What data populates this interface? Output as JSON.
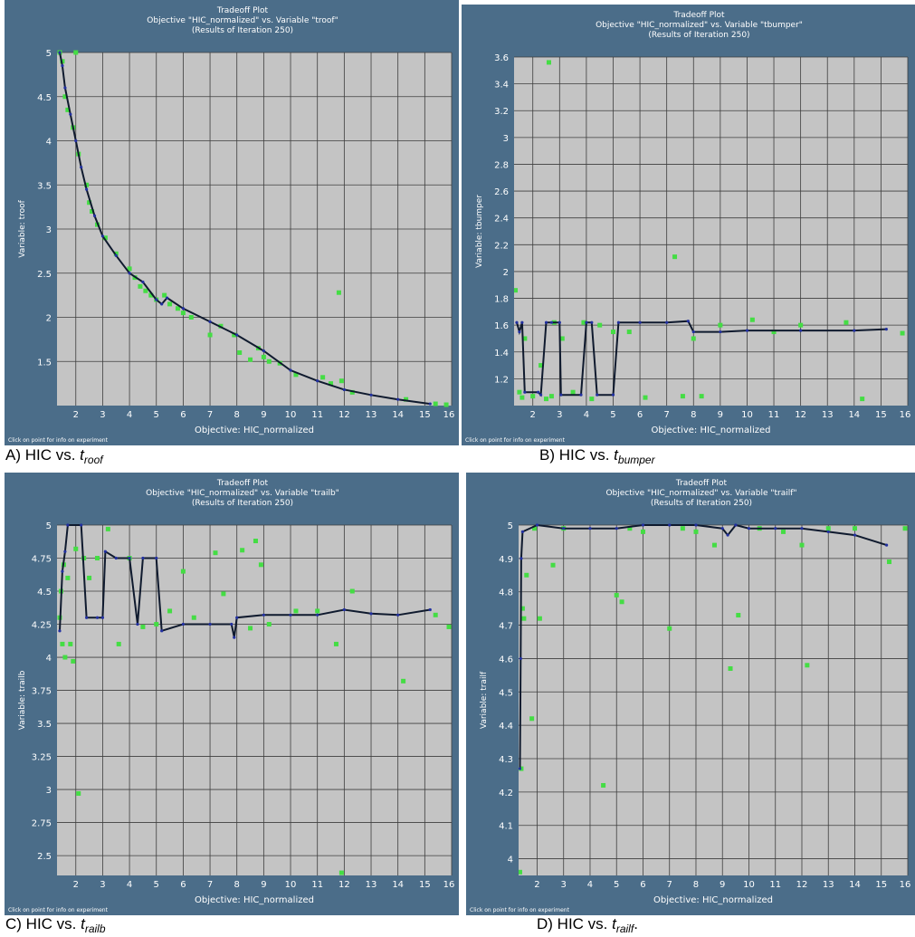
{
  "panels": [
    {
      "title_lines": [
        "Tradeoff Plot",
        "Objective \"HIC_normalized\" vs. Variable \"troof\"",
        "(Results of Iteration 250)"
      ],
      "caption": {
        "prefix": "A) HIC vs. ",
        "var": "t",
        "sub": "roof",
        "suffix": ""
      },
      "footer": "Click on point for info on experiment"
    },
    {
      "title_lines": [
        "Tradeoff Plot",
        "Objective \"HIC_normalized\" vs. Variable \"tbumper\"",
        "(Results of Iteration 250)"
      ],
      "caption": {
        "prefix": "B) HIC vs. ",
        "var": "t",
        "sub": "bumper",
        "suffix": ""
      },
      "footer": "Click on point for info on experiment"
    },
    {
      "title_lines": [
        "Tradeoff Plot",
        "Objective \"HIC_normalized\" vs. Variable \"trailb\"",
        "(Results of Iteration 250)"
      ],
      "caption": {
        "prefix": "C) HIC vs. ",
        "var": "t",
        "sub": "railb",
        "suffix": ""
      },
      "footer": "Click on point for info on experiment"
    },
    {
      "title_lines": [
        "Tradeoff Plot",
        "Objective \"HIC_normalized\" vs. Variable \"trailf\"",
        "(Results of Iteration 250)"
      ],
      "caption": {
        "prefix": "D) HIC vs. ",
        "var": "t",
        "sub": "railf",
        "suffix": "."
      },
      "footer": "Click on point for info on experiment"
    }
  ],
  "colors": {
    "panel_bg": "#4b6d89",
    "plot_bg": "#c4c4c4",
    "grid": "#3e3e3e",
    "front_line": "#0f1a2e",
    "front_points": "#2230a0",
    "points": "#44dd44",
    "text": "#ffffff"
  },
  "chart_data": [
    {
      "type": "scatter",
      "xlabel": "Objective: HIC_normalized",
      "ylabel": "Variable: troof",
      "xlim": [
        1.3,
        16
      ],
      "ylim": [
        1.0,
        5.0
      ],
      "xticks": [
        "2",
        "3",
        "4",
        "5",
        "6",
        "7",
        "8",
        "9",
        "10",
        "11",
        "12",
        "13",
        "14",
        "15",
        "16"
      ],
      "yticks": [
        "1.5",
        "2",
        "2.5",
        "3",
        "3.5",
        "4",
        "4.5",
        "5"
      ],
      "grid": true,
      "line": [
        [
          1.4,
          5.0
        ],
        [
          1.5,
          4.85
        ],
        [
          1.6,
          4.6
        ],
        [
          1.8,
          4.3
        ],
        [
          2.0,
          4.0
        ],
        [
          2.2,
          3.7
        ],
        [
          2.4,
          3.45
        ],
        [
          2.7,
          3.15
        ],
        [
          3.0,
          2.92
        ],
        [
          3.5,
          2.7
        ],
        [
          4.0,
          2.5
        ],
        [
          4.5,
          2.4
        ],
        [
          5.0,
          2.2
        ],
        [
          5.2,
          2.15
        ],
        [
          5.4,
          2.22
        ],
        [
          6.0,
          2.1
        ],
        [
          7.0,
          1.95
        ],
        [
          8.0,
          1.8
        ],
        [
          9.0,
          1.62
        ],
        [
          10.0,
          1.4
        ],
        [
          11.0,
          1.28
        ],
        [
          12.0,
          1.18
        ],
        [
          13.0,
          1.12
        ],
        [
          14.0,
          1.07
        ],
        [
          15.2,
          1.02
        ]
      ],
      "points": [
        [
          1.4,
          5.0
        ],
        [
          1.5,
          4.9
        ],
        [
          1.6,
          4.5
        ],
        [
          1.7,
          4.35
        ],
        [
          2.0,
          5.0
        ],
        [
          1.9,
          4.15
        ],
        [
          2.1,
          3.85
        ],
        [
          2.4,
          3.5
        ],
        [
          2.5,
          3.3
        ],
        [
          2.6,
          3.2
        ],
        [
          2.8,
          3.05
        ],
        [
          3.1,
          2.9
        ],
        [
          3.5,
          2.72
        ],
        [
          4.0,
          2.55
        ],
        [
          4.2,
          2.45
        ],
        [
          4.4,
          2.35
        ],
        [
          4.6,
          2.3
        ],
        [
          4.8,
          2.25
        ],
        [
          5.0,
          2.2
        ],
        [
          5.3,
          2.25
        ],
        [
          5.5,
          2.15
        ],
        [
          5.8,
          2.1
        ],
        [
          6.0,
          2.05
        ],
        [
          6.3,
          2.0
        ],
        [
          7.0,
          1.8
        ],
        [
          7.4,
          1.9
        ],
        [
          7.9,
          1.8
        ],
        [
          8.1,
          1.6
        ],
        [
          8.5,
          1.52
        ],
        [
          8.8,
          1.65
        ],
        [
          9.0,
          1.55
        ],
        [
          9.2,
          1.5
        ],
        [
          9.6,
          1.48
        ],
        [
          10.2,
          1.35
        ],
        [
          11.2,
          1.32
        ],
        [
          11.5,
          1.25
        ],
        [
          11.8,
          2.28
        ],
        [
          11.9,
          1.28
        ],
        [
          12.3,
          1.15
        ],
        [
          14.3,
          1.07
        ],
        [
          15.4,
          1.02
        ],
        [
          15.8,
          1.01
        ]
      ]
    },
    {
      "type": "scatter",
      "xlabel": "Objective: HIC_normalized",
      "ylabel": "Variable: tbumper",
      "xlim": [
        1.3,
        16
      ],
      "ylim": [
        1.0,
        3.6
      ],
      "xticks": [
        "2",
        "3",
        "4",
        "5",
        "6",
        "7",
        "8",
        "9",
        "10",
        "11",
        "12",
        "13",
        "14",
        "15",
        "16"
      ],
      "yticks": [
        "1.2",
        "1.4",
        "1.6",
        "1.8",
        "2",
        "2.2",
        "2.4",
        "2.6",
        "2.8",
        "3",
        "3.2",
        "3.4",
        "3.6"
      ],
      "grid": true,
      "line": [
        [
          1.4,
          1.62
        ],
        [
          1.5,
          1.55
        ],
        [
          1.6,
          1.62
        ],
        [
          1.7,
          1.1
        ],
        [
          2.2,
          1.1
        ],
        [
          2.3,
          1.08
        ],
        [
          2.5,
          1.62
        ],
        [
          2.7,
          1.62
        ],
        [
          3.0,
          1.62
        ],
        [
          3.05,
          1.08
        ],
        [
          3.8,
          1.08
        ],
        [
          4.0,
          1.62
        ],
        [
          4.2,
          1.62
        ],
        [
          4.4,
          1.08
        ],
        [
          5.0,
          1.08
        ],
        [
          5.2,
          1.62
        ],
        [
          6.0,
          1.62
        ],
        [
          7.0,
          1.62
        ],
        [
          7.8,
          1.63
        ],
        [
          8.0,
          1.55
        ],
        [
          9.0,
          1.55
        ],
        [
          10.0,
          1.56
        ],
        [
          12.0,
          1.56
        ],
        [
          14.0,
          1.56
        ],
        [
          15.2,
          1.57
        ]
      ],
      "points": [
        [
          1.35,
          1.86
        ],
        [
          1.5,
          1.1
        ],
        [
          1.6,
          1.06
        ],
        [
          1.7,
          1.5
        ],
        [
          2.0,
          1.07
        ],
        [
          2.3,
          1.3
        ],
        [
          2.5,
          1.05
        ],
        [
          2.7,
          1.07
        ],
        [
          2.8,
          1.62
        ],
        [
          2.6,
          3.56
        ],
        [
          3.1,
          1.5
        ],
        [
          3.5,
          1.1
        ],
        [
          3.9,
          1.62
        ],
        [
          4.2,
          1.05
        ],
        [
          4.5,
          1.6
        ],
        [
          5.0,
          1.55
        ],
        [
          5.6,
          1.55
        ],
        [
          6.2,
          1.06
        ],
        [
          7.3,
          2.11
        ],
        [
          7.6,
          1.07
        ],
        [
          8.0,
          1.5
        ],
        [
          8.3,
          1.07
        ],
        [
          9.0,
          1.6
        ],
        [
          10.2,
          1.64
        ],
        [
          11.0,
          1.55
        ],
        [
          12.0,
          1.6
        ],
        [
          13.7,
          1.62
        ],
        [
          14.3,
          1.05
        ],
        [
          15.8,
          1.54
        ]
      ]
    },
    {
      "type": "scatter",
      "xlabel": "Objective: HIC_normalized",
      "ylabel": "Variable: trailb",
      "xlim": [
        1.3,
        16
      ],
      "ylim": [
        2.35,
        5.0
      ],
      "xticks": [
        "2",
        "3",
        "4",
        "5",
        "6",
        "7",
        "8",
        "9",
        "10",
        "11",
        "12",
        "13",
        "14",
        "15",
        "16"
      ],
      "yticks": [
        "2.5",
        "2.75",
        "3",
        "3.25",
        "3.5",
        "3.75",
        "4",
        "4.25",
        "4.5",
        "4.75",
        "5"
      ],
      "grid": true,
      "line": [
        [
          1.4,
          4.2
        ],
        [
          1.5,
          4.65
        ],
        [
          1.6,
          4.8
        ],
        [
          1.7,
          5.0
        ],
        [
          2.2,
          5.0
        ],
        [
          2.4,
          4.3
        ],
        [
          2.8,
          4.3
        ],
        [
          3.0,
          4.3
        ],
        [
          3.1,
          4.8
        ],
        [
          3.5,
          4.75
        ],
        [
          4.0,
          4.75
        ],
        [
          4.3,
          4.25
        ],
        [
          4.5,
          4.75
        ],
        [
          5.0,
          4.75
        ],
        [
          5.2,
          4.2
        ],
        [
          6.0,
          4.25
        ],
        [
          7.0,
          4.25
        ],
        [
          7.8,
          4.25
        ],
        [
          7.9,
          4.15
        ],
        [
          8.0,
          4.3
        ],
        [
          9.0,
          4.32
        ],
        [
          10.0,
          4.32
        ],
        [
          11.0,
          4.32
        ],
        [
          12.0,
          4.36
        ],
        [
          13.0,
          4.33
        ],
        [
          14.0,
          4.32
        ],
        [
          15.2,
          4.36
        ]
      ],
      "points": [
        [
          1.4,
          4.3
        ],
        [
          1.45,
          4.5
        ],
        [
          1.5,
          4.1
        ],
        [
          1.55,
          4.7
        ],
        [
          1.6,
          4.0
        ],
        [
          1.7,
          4.6
        ],
        [
          1.8,
          4.1
        ],
        [
          1.9,
          3.97
        ],
        [
          2.0,
          4.82
        ],
        [
          2.1,
          2.97
        ],
        [
          2.3,
          4.75
        ],
        [
          2.5,
          4.6
        ],
        [
          2.8,
          4.75
        ],
        [
          3.2,
          4.97
        ],
        [
          3.6,
          4.1
        ],
        [
          4.0,
          4.75
        ],
        [
          4.5,
          4.23
        ],
        [
          5.0,
          4.25
        ],
        [
          5.5,
          4.35
        ],
        [
          6.0,
          4.65
        ],
        [
          6.4,
          4.3
        ],
        [
          7.2,
          4.79
        ],
        [
          7.5,
          4.48
        ],
        [
          8.2,
          4.81
        ],
        [
          8.5,
          4.22
        ],
        [
          8.7,
          4.88
        ],
        [
          8.9,
          4.7
        ],
        [
          9.2,
          4.25
        ],
        [
          10.2,
          4.35
        ],
        [
          11.0,
          4.35
        ],
        [
          11.7,
          4.1
        ],
        [
          11.9,
          2.37
        ],
        [
          12.3,
          4.5
        ],
        [
          14.2,
          3.82
        ],
        [
          15.4,
          4.32
        ],
        [
          15.9,
          4.23
        ]
      ]
    },
    {
      "type": "scatter",
      "xlabel": "Objective: HIC_normalized",
      "ylabel": "Variable: trailf",
      "xlim": [
        1.3,
        16
      ],
      "ylim": [
        3.95,
        5.0
      ],
      "xticks": [
        "2",
        "3",
        "4",
        "5",
        "6",
        "7",
        "8",
        "9",
        "10",
        "11",
        "12",
        "13",
        "14",
        "15",
        "16"
      ],
      "yticks": [
        "4",
        "4.1",
        "4.2",
        "4.3",
        "4.4",
        "4.5",
        "4.6",
        "4.7",
        "4.8",
        "4.9",
        "5"
      ],
      "grid": true,
      "line": [
        [
          1.35,
          4.27
        ],
        [
          1.38,
          4.6
        ],
        [
          1.4,
          4.9
        ],
        [
          1.45,
          4.98
        ],
        [
          2.0,
          5.0
        ],
        [
          3.0,
          4.99
        ],
        [
          4.0,
          4.99
        ],
        [
          5.0,
          4.99
        ],
        [
          6.0,
          5.0
        ],
        [
          7.0,
          5.0
        ],
        [
          8.0,
          5.0
        ],
        [
          9.0,
          4.99
        ],
        [
          9.2,
          4.97
        ],
        [
          9.5,
          5.0
        ],
        [
          10.0,
          4.99
        ],
        [
          11.0,
          4.99
        ],
        [
          12.0,
          4.99
        ],
        [
          13.0,
          4.98
        ],
        [
          14.0,
          4.97
        ],
        [
          15.2,
          4.94
        ]
      ],
      "points": [
        [
          1.35,
          3.96
        ],
        [
          1.4,
          4.27
        ],
        [
          1.45,
          4.75
        ],
        [
          1.5,
          4.72
        ],
        [
          1.6,
          4.85
        ],
        [
          1.8,
          4.42
        ],
        [
          1.9,
          4.99
        ],
        [
          2.1,
          4.72
        ],
        [
          2.6,
          4.88
        ],
        [
          3.0,
          4.99
        ],
        [
          4.5,
          4.22
        ],
        [
          5.0,
          4.79
        ],
        [
          5.2,
          4.77
        ],
        [
          5.5,
          4.99
        ],
        [
          6.0,
          4.98
        ],
        [
          7.0,
          4.69
        ],
        [
          7.5,
          4.99
        ],
        [
          8.0,
          4.98
        ],
        [
          8.7,
          4.94
        ],
        [
          9.3,
          4.57
        ],
        [
          9.6,
          4.73
        ],
        [
          10.4,
          4.99
        ],
        [
          11.3,
          4.98
        ],
        [
          12.0,
          4.94
        ],
        [
          12.2,
          4.58
        ],
        [
          13.0,
          4.99
        ],
        [
          14.0,
          4.99
        ],
        [
          15.3,
          4.89
        ],
        [
          15.9,
          4.99
        ]
      ]
    }
  ]
}
